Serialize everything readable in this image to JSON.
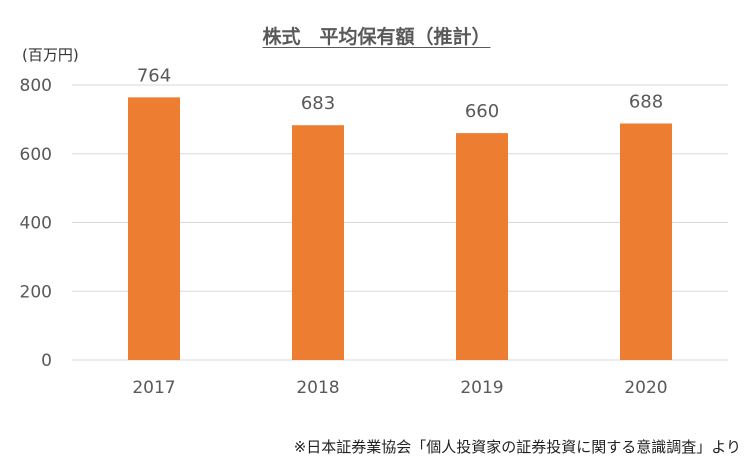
{
  "colors": {
    "bar": "#ED7D31",
    "grid": "#D9D9D9",
    "axis_text": "#595959"
  },
  "chart_data": {
    "type": "bar",
    "title": "株式　平均保有額（推計）",
    "unit_label": "(百万円)",
    "categories": [
      "2017",
      "2018",
      "2019",
      "2020"
    ],
    "values": [
      764,
      683,
      660,
      688
    ],
    "data_labels": [
      "764",
      "683",
      "660",
      "688"
    ],
    "ylim": [
      0,
      800
    ],
    "yticks": [
      0,
      200,
      400,
      600,
      800
    ],
    "ytick_labels": [
      "0",
      "200",
      "400",
      "600",
      "800"
    ],
    "grid": true,
    "source": "※日本証券業協会「個人投資家の証券投資に関する意識調査」より"
  }
}
